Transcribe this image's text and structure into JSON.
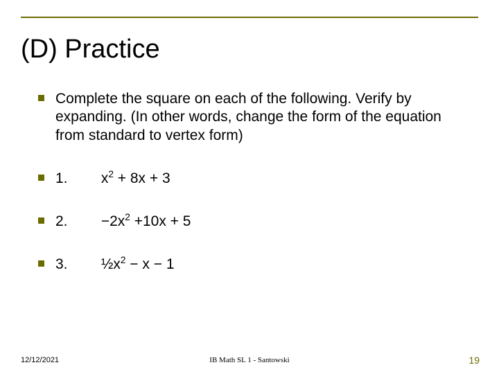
{
  "accent_color": "#6b6b00",
  "title": "(D) Practice",
  "bullets": [
    {
      "text": "Complete the square on each of the following. Verify by expanding. (In other words, change the form of the equation from standard to vertex form)"
    },
    {
      "num": "1.",
      "expr_html": "x<sup>2</sup> + 8x + 3"
    },
    {
      "num": "2.",
      "expr_html": "−2x<sup>2</sup> +10x + 5"
    },
    {
      "num": "3.",
      "expr_html": "½x<sup>2</sup> − x − 1"
    }
  ],
  "footer": {
    "date": "12/12/2021",
    "center": "IB Math SL 1 - Santowski",
    "page": "19"
  }
}
